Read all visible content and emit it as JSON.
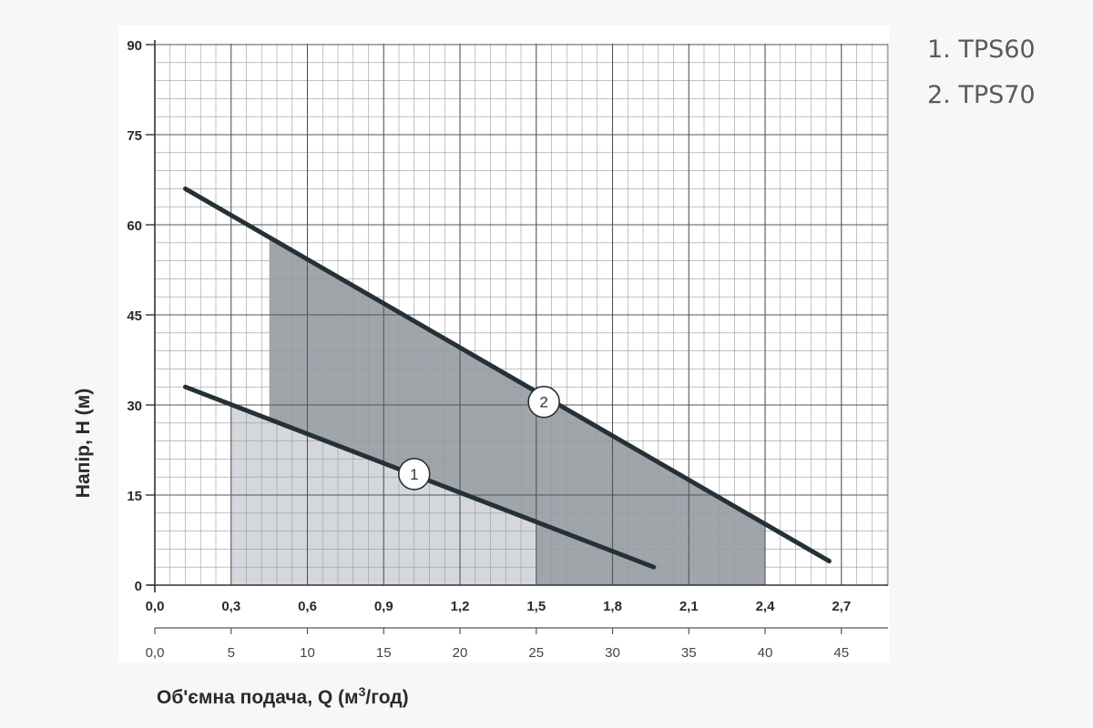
{
  "legend": {
    "items": [
      "1. TPS60",
      "2. TPS70"
    ]
  },
  "chart_data": {
    "type": "line",
    "xlabel_main": "Об'ємна подача, Q (м",
    "xlabel_sup": "3",
    "xlabel_end": "/год)",
    "ylabel": "Напір, H (м)",
    "y_ticks": [
      "0",
      "15",
      "30",
      "45",
      "60",
      "75",
      "90"
    ],
    "x_ticks_primary": [
      "0,0",
      "0,3",
      "0,6",
      "0,9",
      "1,2",
      "1,5",
      "1,8",
      "2,1",
      "2,4",
      "2,7"
    ],
    "x_ticks_secondary": [
      "0,0",
      "5",
      "10",
      "15",
      "20",
      "25",
      "30",
      "35",
      "40",
      "45"
    ],
    "xlim": [
      0,
      48
    ],
    "ylim": [
      0,
      90
    ],
    "x_units_note_secondary_axis": "",
    "series": [
      {
        "name": "1",
        "x": [
          2,
          32.7
        ],
        "y": [
          33,
          3
        ],
        "marker_x": 17,
        "marker_y": 18.5,
        "operating_range": [
          5,
          25
        ]
      },
      {
        "name": "2",
        "x": [
          2,
          44.2
        ],
        "y": [
          66,
          4
        ],
        "marker_x": 25.5,
        "marker_y": 30.5,
        "operating_range": [
          7.5,
          40
        ]
      }
    ],
    "colors": {
      "line": "#243238",
      "region1": "#d4d8dc",
      "region2": "#a0a5ab",
      "grid": "#9a9a9a",
      "grid_major": "#555555"
    }
  }
}
